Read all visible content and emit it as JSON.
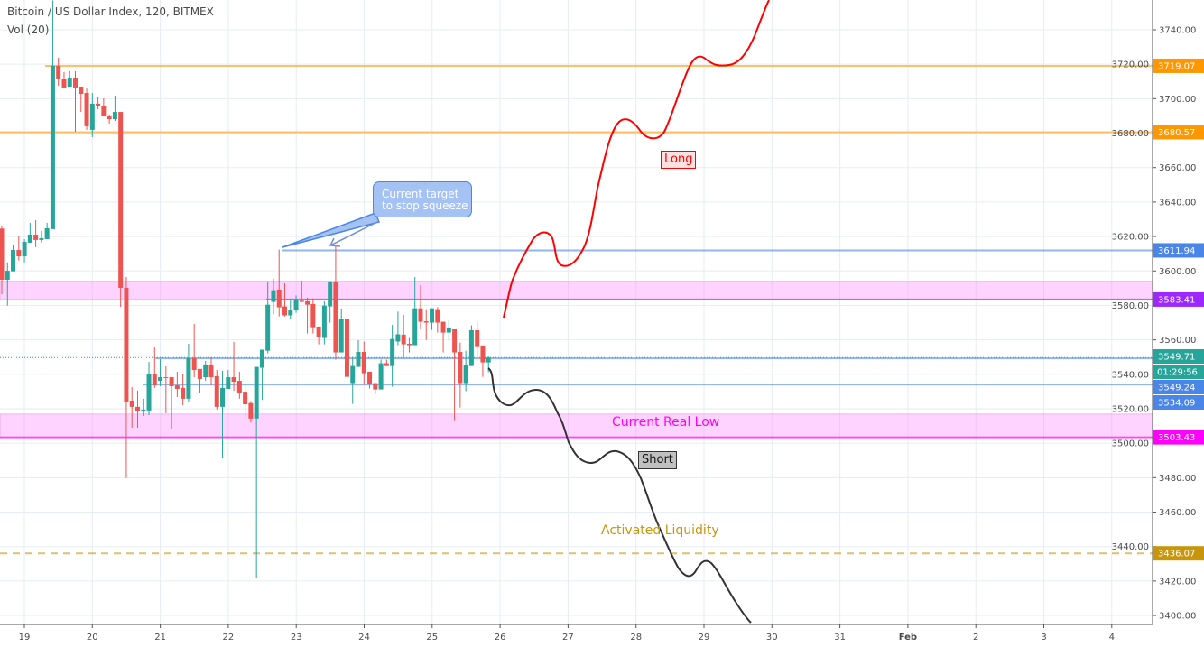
{
  "header": {
    "title": "Bitcoin / US Dollar Index, 120, BITMEX",
    "volume_legend": "Vol (20)"
  },
  "chart_data": {
    "type": "candlestick",
    "title": "Bitcoin / US Dollar Index, 120, BITMEX",
    "interval_minutes": 120,
    "ylim": [
      3392,
      3760
    ],
    "grid": true,
    "y_ticks": [
      3740,
      3720,
      3700,
      3680,
      3660,
      3640,
      3620,
      3600,
      3580,
      3560,
      3540,
      3520,
      3500,
      3480,
      3460,
      3440,
      3420,
      3400
    ],
    "y_tick_labels": [
      "3740.00",
      "3720.00",
      "3700.00",
      "3680.00",
      "3660.00",
      "3640.00",
      "3620.00",
      "3600.00",
      "3580.00",
      "3560.00",
      "3540.00",
      "3520.00",
      "3500.00",
      "3480.00",
      "3460.00",
      "3440.00",
      "3420.00",
      "3400.00"
    ],
    "x_tick_labels": [
      "19",
      "20",
      "21",
      "22",
      "23",
      "24",
      "25",
      "26",
      "27",
      "28",
      "29",
      "30",
      "31",
      "Feb",
      "2",
      "3",
      "4"
    ],
    "candles_ohlc": [
      [
        3624.6,
        3626.3,
        3586.5,
        3594.9
      ],
      [
        3594.9,
        3605.0,
        3579.9,
        3600.1
      ],
      [
        3599.8,
        3615.3,
        3599.8,
        3612.2
      ],
      [
        3612.2,
        3620.1,
        3606.1,
        3608.5
      ],
      [
        3608.5,
        3618.5,
        3605.0,
        3616.9
      ],
      [
        3616.4,
        3627.9,
        3616.4,
        3621.1
      ],
      [
        3621.1,
        3629.5,
        3613.8,
        3618.0
      ],
      [
        3618.0,
        3623.2,
        3616.4,
        3619.0
      ],
      [
        3618.5,
        3627.9,
        3618.5,
        3624.8
      ],
      [
        3624.3,
        3757.0,
        3624.3,
        3719.1
      ],
      [
        3719.1,
        3723.8,
        3707.5,
        3711.2
      ],
      [
        3711.7,
        3715.4,
        3706.5,
        3706.5
      ],
      [
        3707.0,
        3715.9,
        3707.0,
        3712.2
      ],
      [
        3712.2,
        3715.9,
        3680.8,
        3706.5
      ],
      [
        3707.0,
        3707.0,
        3692.3,
        3702.8
      ],
      [
        3703.3,
        3705.9,
        3681.9,
        3684.0
      ],
      [
        3681.9,
        3703.3,
        3677.7,
        3697.1
      ],
      [
        3697.1,
        3700.7,
        3693.9,
        3696.0
      ],
      [
        3696.0,
        3700.2,
        3689.7,
        3689.7
      ],
      [
        3689.7,
        3690.8,
        3685.5,
        3688.1
      ],
      [
        3688.1,
        3701.8,
        3687.1,
        3692.3
      ],
      [
        3692.3,
        3692.3,
        3579.2,
        3590.2
      ],
      [
        3590.2,
        3596.5,
        3479.7,
        3524.2
      ],
      [
        3524.7,
        3532.6,
        3509.0,
        3521.1
      ],
      [
        3521.1,
        3530.5,
        3509.0,
        3518.4
      ],
      [
        3518.4,
        3525.8,
        3515.8,
        3519.5
      ],
      [
        3519.0,
        3547.2,
        3516.3,
        3540.4
      ],
      [
        3540.4,
        3555.6,
        3532.1,
        3533.6
      ],
      [
        3536.2,
        3548.8,
        3533.1,
        3538.3
      ],
      [
        3538.3,
        3544.6,
        3517.4,
        3537.8
      ],
      [
        3538.3,
        3538.3,
        3508.5,
        3533.1
      ],
      [
        3533.6,
        3541.5,
        3526.8,
        3531.5
      ],
      [
        3532.1,
        3539.9,
        3522.1,
        3525.8
      ],
      [
        3525.8,
        3557.7,
        3523.7,
        3549.3
      ],
      [
        3549.3,
        3569.2,
        3538.3,
        3542.5
      ],
      [
        3543.1,
        3543.1,
        3529.4,
        3537.3
      ],
      [
        3538.3,
        3547.8,
        3536.2,
        3545.7
      ],
      [
        3545.7,
        3549.9,
        3533.6,
        3538.3
      ],
      [
        3538.9,
        3542.5,
        3519.5,
        3521.1
      ],
      [
        3521.1,
        3542.0,
        3491.2,
        3532.1
      ],
      [
        3531.5,
        3542.5,
        3531.5,
        3538.3
      ],
      [
        3538.3,
        3558.8,
        3530.5,
        3535.7
      ],
      [
        3536.2,
        3541.5,
        3525.8,
        3529.4
      ],
      [
        3529.9,
        3534.2,
        3514.2,
        3522.6
      ],
      [
        3523.3,
        3524.5,
        3512.0,
        3514.3
      ],
      [
        3514.3,
        3544.3,
        3422.0,
        3544.3
      ],
      [
        3543.8,
        3554.3,
        3525.1,
        3554.3
      ],
      [
        3553.7,
        3594.1,
        3552.2,
        3580.4
      ],
      [
        3582.0,
        3595.5,
        3574.9,
        3588.8
      ],
      [
        3589.2,
        3612.4,
        3573.6,
        3578.9
      ],
      [
        3579.4,
        3592.8,
        3573.6,
        3574.2
      ],
      [
        3574.2,
        3583.6,
        3572.1,
        3577.6
      ],
      [
        3577.3,
        3585.8,
        3575.7,
        3582.9
      ],
      [
        3582.7,
        3594.4,
        3582.0,
        3582.0
      ],
      [
        3582.4,
        3584.5,
        3563.7,
        3580.4
      ],
      [
        3580.8,
        3584.1,
        3563.7,
        3567.3
      ],
      [
        3567.7,
        3567.7,
        3557.4,
        3561.6
      ],
      [
        3561.1,
        3582.4,
        3557.4,
        3579.9
      ],
      [
        3579.4,
        3593.9,
        3570.0,
        3593.9
      ],
      [
        3593.9,
        3615.0,
        3548.5,
        3552.7
      ],
      [
        3552.7,
        3578.2,
        3552.7,
        3571.9
      ],
      [
        3571.9,
        3582.9,
        3538.5,
        3538.5
      ],
      [
        3534.9,
        3550.1,
        3522.8,
        3544.8
      ],
      [
        3544.3,
        3559.8,
        3544.3,
        3553.0
      ],
      [
        3553.0,
        3559.0,
        3533.8,
        3540.6
      ],
      [
        3541.5,
        3541.5,
        3531.7,
        3534.4
      ],
      [
        3534.9,
        3534.9,
        3528.6,
        3531.2
      ],
      [
        3531.2,
        3548.5,
        3531.2,
        3546.4
      ],
      [
        3546.4,
        3548.5,
        3544.8,
        3544.8
      ],
      [
        3544.8,
        3568.7,
        3532.8,
        3560.5
      ],
      [
        3559.0,
        3576.4,
        3556.9,
        3563.2
      ],
      [
        3563.0,
        3574.5,
        3549.5,
        3557.4
      ],
      [
        3557.7,
        3561.1,
        3552.7,
        3556.9
      ],
      [
        3556.9,
        3596.5,
        3556.9,
        3578.3
      ],
      [
        3578.3,
        3591.8,
        3566.1,
        3570.5
      ],
      [
        3570.8,
        3577.8,
        3560.0,
        3570.0
      ],
      [
        3570.0,
        3578.3,
        3565.8,
        3578.3
      ],
      [
        3577.8,
        3579.0,
        3564.2,
        3570.0
      ],
      [
        3570.5,
        3570.5,
        3552.7,
        3564.2
      ],
      [
        3564.2,
        3571.4,
        3560.0,
        3567.2
      ],
      [
        3566.1,
        3566.1,
        3513.4,
        3552.7
      ],
      [
        3553.0,
        3558.4,
        3520.7,
        3534.9
      ],
      [
        3534.9,
        3553.7,
        3530.2,
        3545.4
      ],
      [
        3544.8,
        3568.4,
        3544.8,
        3565.6
      ],
      [
        3565.6,
        3570.5,
        3549.5,
        3556.3
      ],
      [
        3556.7,
        3556.7,
        3538.5,
        3546.9
      ],
      [
        3546.9,
        3550.6,
        3541.2,
        3549.7
      ]
    ],
    "up_color": "#26a69a",
    "down_color": "#ef5350",
    "levels": [
      {
        "price": 3719.07,
        "label": "3719.07",
        "color": "#ff9800",
        "style": "solid"
      },
      {
        "price": 3680.57,
        "label": "3680.57",
        "color": "#ff9800",
        "style": "solid"
      },
      {
        "price": 3611.94,
        "label": "3611.94",
        "color": "#4a86e8",
        "style": "solid"
      },
      {
        "price": 3583.41,
        "label": "3583.41",
        "color": "#9c27ff",
        "style": "solid"
      },
      {
        "price": 3549.71,
        "label": "3549.71",
        "color": "#26a69a",
        "style": "dotted"
      },
      {
        "price": 3549.24,
        "label": "3549.24",
        "color": "#4a86e8",
        "style": "solid"
      },
      {
        "price": 3534.09,
        "label": "3534.09",
        "color": "#4a86e8",
        "style": "solid"
      },
      {
        "price": 3503.43,
        "label": "3503.43",
        "color": "#ff00ff",
        "style": "solid"
      },
      {
        "price": 3436.07,
        "label": "3436.07",
        "color": "#c8960c",
        "style": "dashed"
      }
    ],
    "zones": [
      {
        "from": 3583.41,
        "to": 3594.0,
        "color": "#ff80ff"
      },
      {
        "from": 3503.43,
        "to": 3516.9,
        "color": "#ff80ff"
      }
    ],
    "countdown": "01:29:56"
  },
  "annotations": {
    "callout": "Current target to stop squeeze",
    "callout_line1": "Current target",
    "callout_line2": "to stop squeeze",
    "long": "Long",
    "short": "Short",
    "current_real_low": "Current Real Low",
    "activated_liquidity": "Activated Liquidity"
  }
}
